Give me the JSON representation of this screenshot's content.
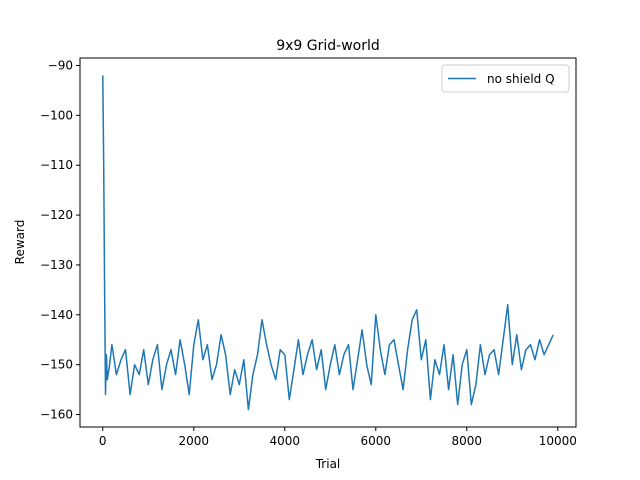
{
  "chart_data": {
    "type": "line",
    "title": "9x9 Grid-world",
    "xlabel": "Trial",
    "ylabel": "Reward",
    "xlim": [
      -500,
      10400
    ],
    "ylim": [
      -162.5,
      -88.5
    ],
    "xticks": [
      0,
      2000,
      4000,
      6000,
      8000,
      10000
    ],
    "xtick_labels": [
      "0",
      "2000",
      "4000",
      "6000",
      "8000",
      "10000"
    ],
    "yticks": [
      -90,
      -100,
      -110,
      -120,
      -130,
      -140,
      -150,
      -160
    ],
    "ytick_labels": [
      "−90",
      "−100",
      "−110",
      "−120",
      "−130",
      "−140",
      "−150",
      "−160"
    ],
    "grid": false,
    "legend": {
      "position": "top-right",
      "entries": [
        "no shield Q"
      ]
    },
    "series": [
      {
        "name": "no shield Q",
        "color": "#1f77b4",
        "x": [
          0,
          20,
          40,
          60,
          80,
          100,
          150,
          200,
          300,
          400,
          500,
          600,
          700,
          800,
          900,
          1000,
          1100,
          1200,
          1300,
          1400,
          1500,
          1600,
          1700,
          1800,
          1900,
          2000,
          2100,
          2200,
          2300,
          2400,
          2500,
          2600,
          2700,
          2800,
          2900,
          3000,
          3100,
          3200,
          3300,
          3400,
          3500,
          3600,
          3700,
          3800,
          3900,
          4000,
          4100,
          4200,
          4300,
          4400,
          4500,
          4600,
          4700,
          4800,
          4900,
          5000,
          5100,
          5200,
          5300,
          5400,
          5500,
          5600,
          5700,
          5800,
          5900,
          6000,
          6100,
          6200,
          6300,
          6400,
          6500,
          6600,
          6700,
          6800,
          6900,
          7000,
          7100,
          7200,
          7300,
          7400,
          7500,
          7600,
          7700,
          7800,
          7900,
          8000,
          8100,
          8200,
          8300,
          8400,
          8500,
          8600,
          8700,
          8800,
          8900,
          9000,
          9100,
          9200,
          9300,
          9400,
          9500,
          9600,
          9700,
          9800,
          9900
        ],
        "y": [
          -92,
          -110,
          -135,
          -156,
          -148,
          -153,
          -150,
          -146,
          -152,
          -149,
          -147,
          -156,
          -150,
          -152,
          -147,
          -154,
          -149,
          -146,
          -155,
          -150,
          -147,
          -152,
          -145,
          -150,
          -156,
          -146,
          -141,
          -149,
          -146,
          -153,
          -150,
          -144,
          -148,
          -156,
          -151,
          -154,
          -149,
          -159,
          -152,
          -148,
          -141,
          -146,
          -150,
          -153,
          -147,
          -148,
          -157,
          -151,
          -145,
          -152,
          -148,
          -145,
          -151,
          -147,
          -155,
          -150,
          -146,
          -152,
          -148,
          -146,
          -155,
          -149,
          -143,
          -150,
          -154,
          -140,
          -147,
          -152,
          -146,
          -145,
          -150,
          -155,
          -147,
          -141,
          -139,
          -149,
          -145,
          -157,
          -149,
          -152,
          -146,
          -155,
          -148,
          -158,
          -150,
          -147,
          -158,
          -154,
          -146,
          -152,
          -148,
          -147,
          -152,
          -145,
          -138,
          -150,
          -144,
          -151,
          -147,
          -146,
          -149,
          -145,
          -148,
          -146,
          -144
        ]
      }
    ]
  }
}
